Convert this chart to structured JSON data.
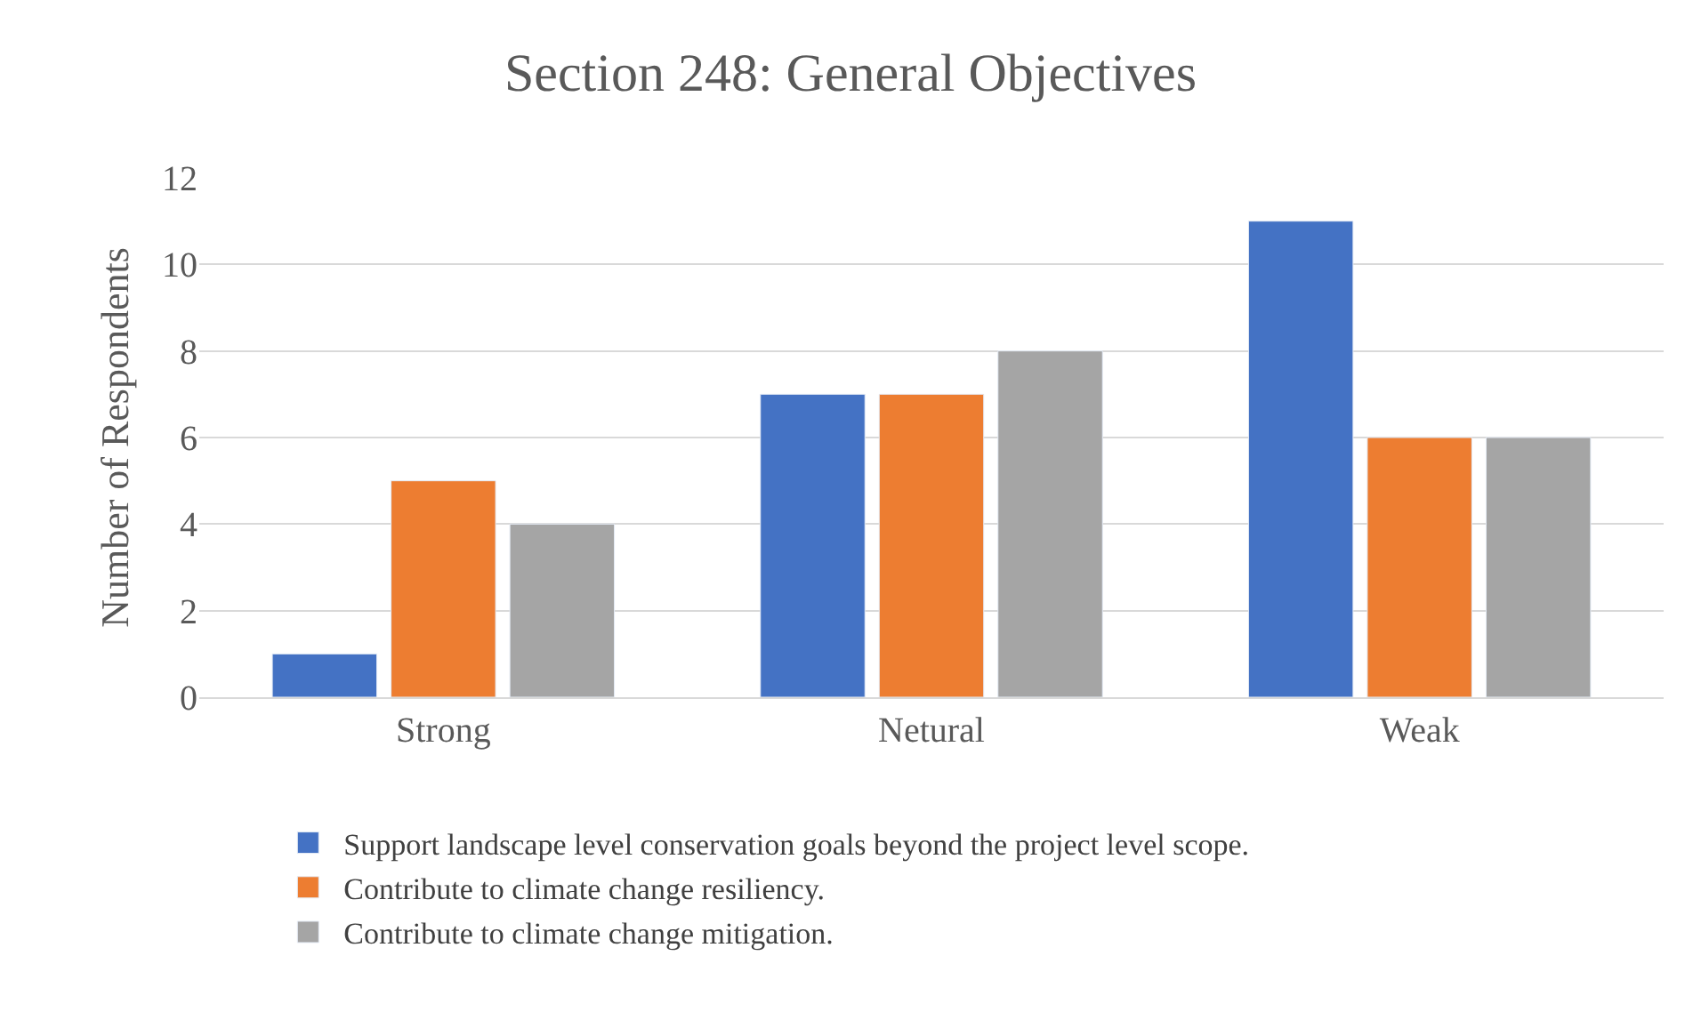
{
  "chart_data": {
    "type": "bar",
    "title": "Section 248: General Objectives",
    "ylabel": "Number of Respondents",
    "categories": [
      "Strong",
      "Netural",
      "Weak"
    ],
    "series": [
      {
        "name": "Support landscape level conservation goals beyond the project level scope.",
        "color": "#4472c4",
        "values": [
          1,
          7,
          11
        ]
      },
      {
        "name": "Contribute to climate change resiliency.",
        "color": "#ed7d31",
        "values": [
          5,
          7,
          6
        ]
      },
      {
        "name": "Contribute to climate change mitigation.",
        "color": "#a5a5a5",
        "values": [
          4,
          8,
          6
        ]
      }
    ],
    "ylim": [
      0,
      12
    ],
    "yticks": [
      0,
      2,
      4,
      6,
      8,
      10,
      12
    ],
    "grid": "y",
    "legend": "bottom"
  }
}
